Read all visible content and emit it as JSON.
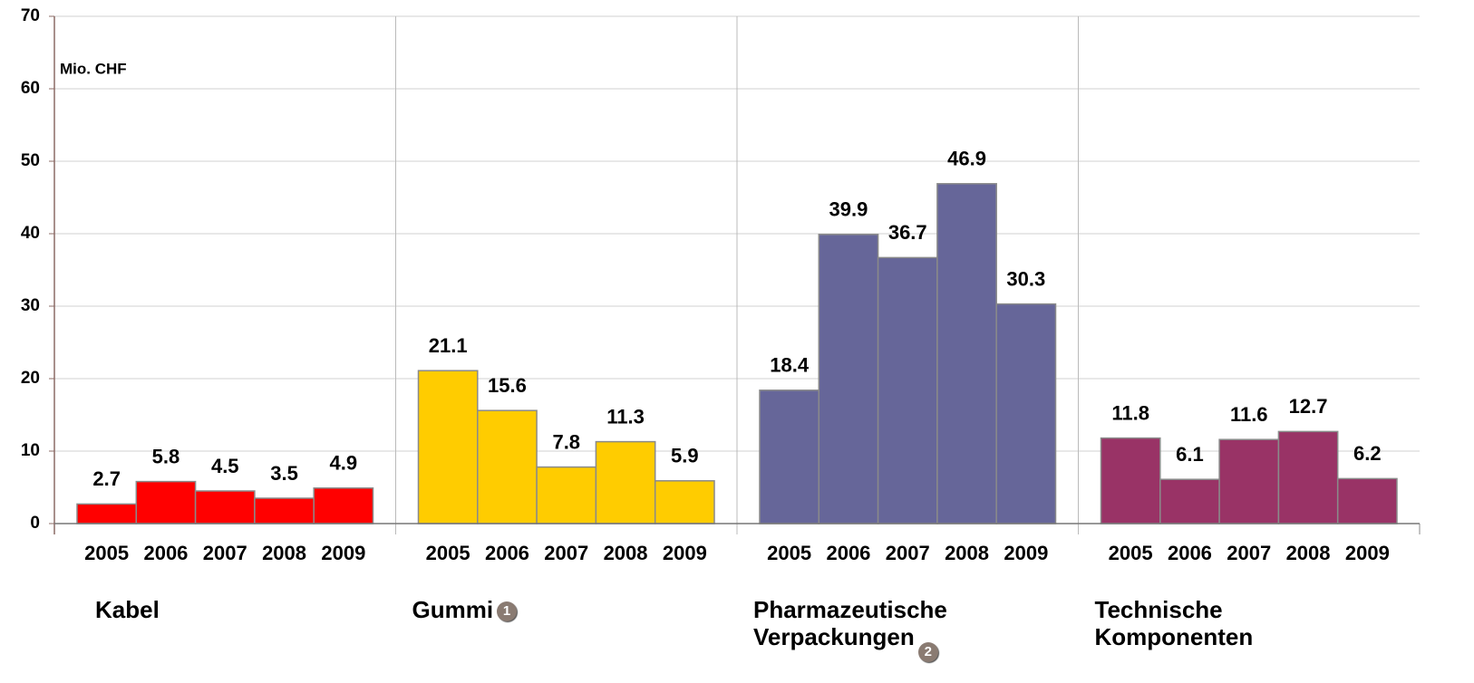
{
  "chart_data": {
    "type": "bar",
    "unit_label": "Mio. CHF",
    "ylim": [
      0,
      70
    ],
    "yticks": [
      0,
      10,
      20,
      30,
      40,
      50,
      60,
      70
    ],
    "grid": true,
    "groups": [
      {
        "name": "Kabel",
        "color": "#ff0000",
        "categories": [
          "2005",
          "2006",
          "2007",
          "2008",
          "2009"
        ],
        "values": [
          2.7,
          5.8,
          4.5,
          3.5,
          4.9
        ]
      },
      {
        "name": "Gummi",
        "note": "1",
        "color": "#ffcc00",
        "categories": [
          "2005",
          "2006",
          "2007",
          "2008",
          "2009"
        ],
        "values": [
          21.1,
          15.6,
          7.8,
          11.3,
          5.9
        ]
      },
      {
        "name": "Pharmazeutische Verpackungen",
        "note": "2",
        "color": "#666699",
        "categories": [
          "2005",
          "2006",
          "2007",
          "2008",
          "2009"
        ],
        "values": [
          18.4,
          39.9,
          36.7,
          46.9,
          30.3
        ]
      },
      {
        "name": "Technische Komponenten",
        "color": "#993366",
        "categories": [
          "2005",
          "2006",
          "2007",
          "2008",
          "2009"
        ],
        "values": [
          11.8,
          6.1,
          11.6,
          12.7,
          6.2
        ]
      }
    ]
  }
}
